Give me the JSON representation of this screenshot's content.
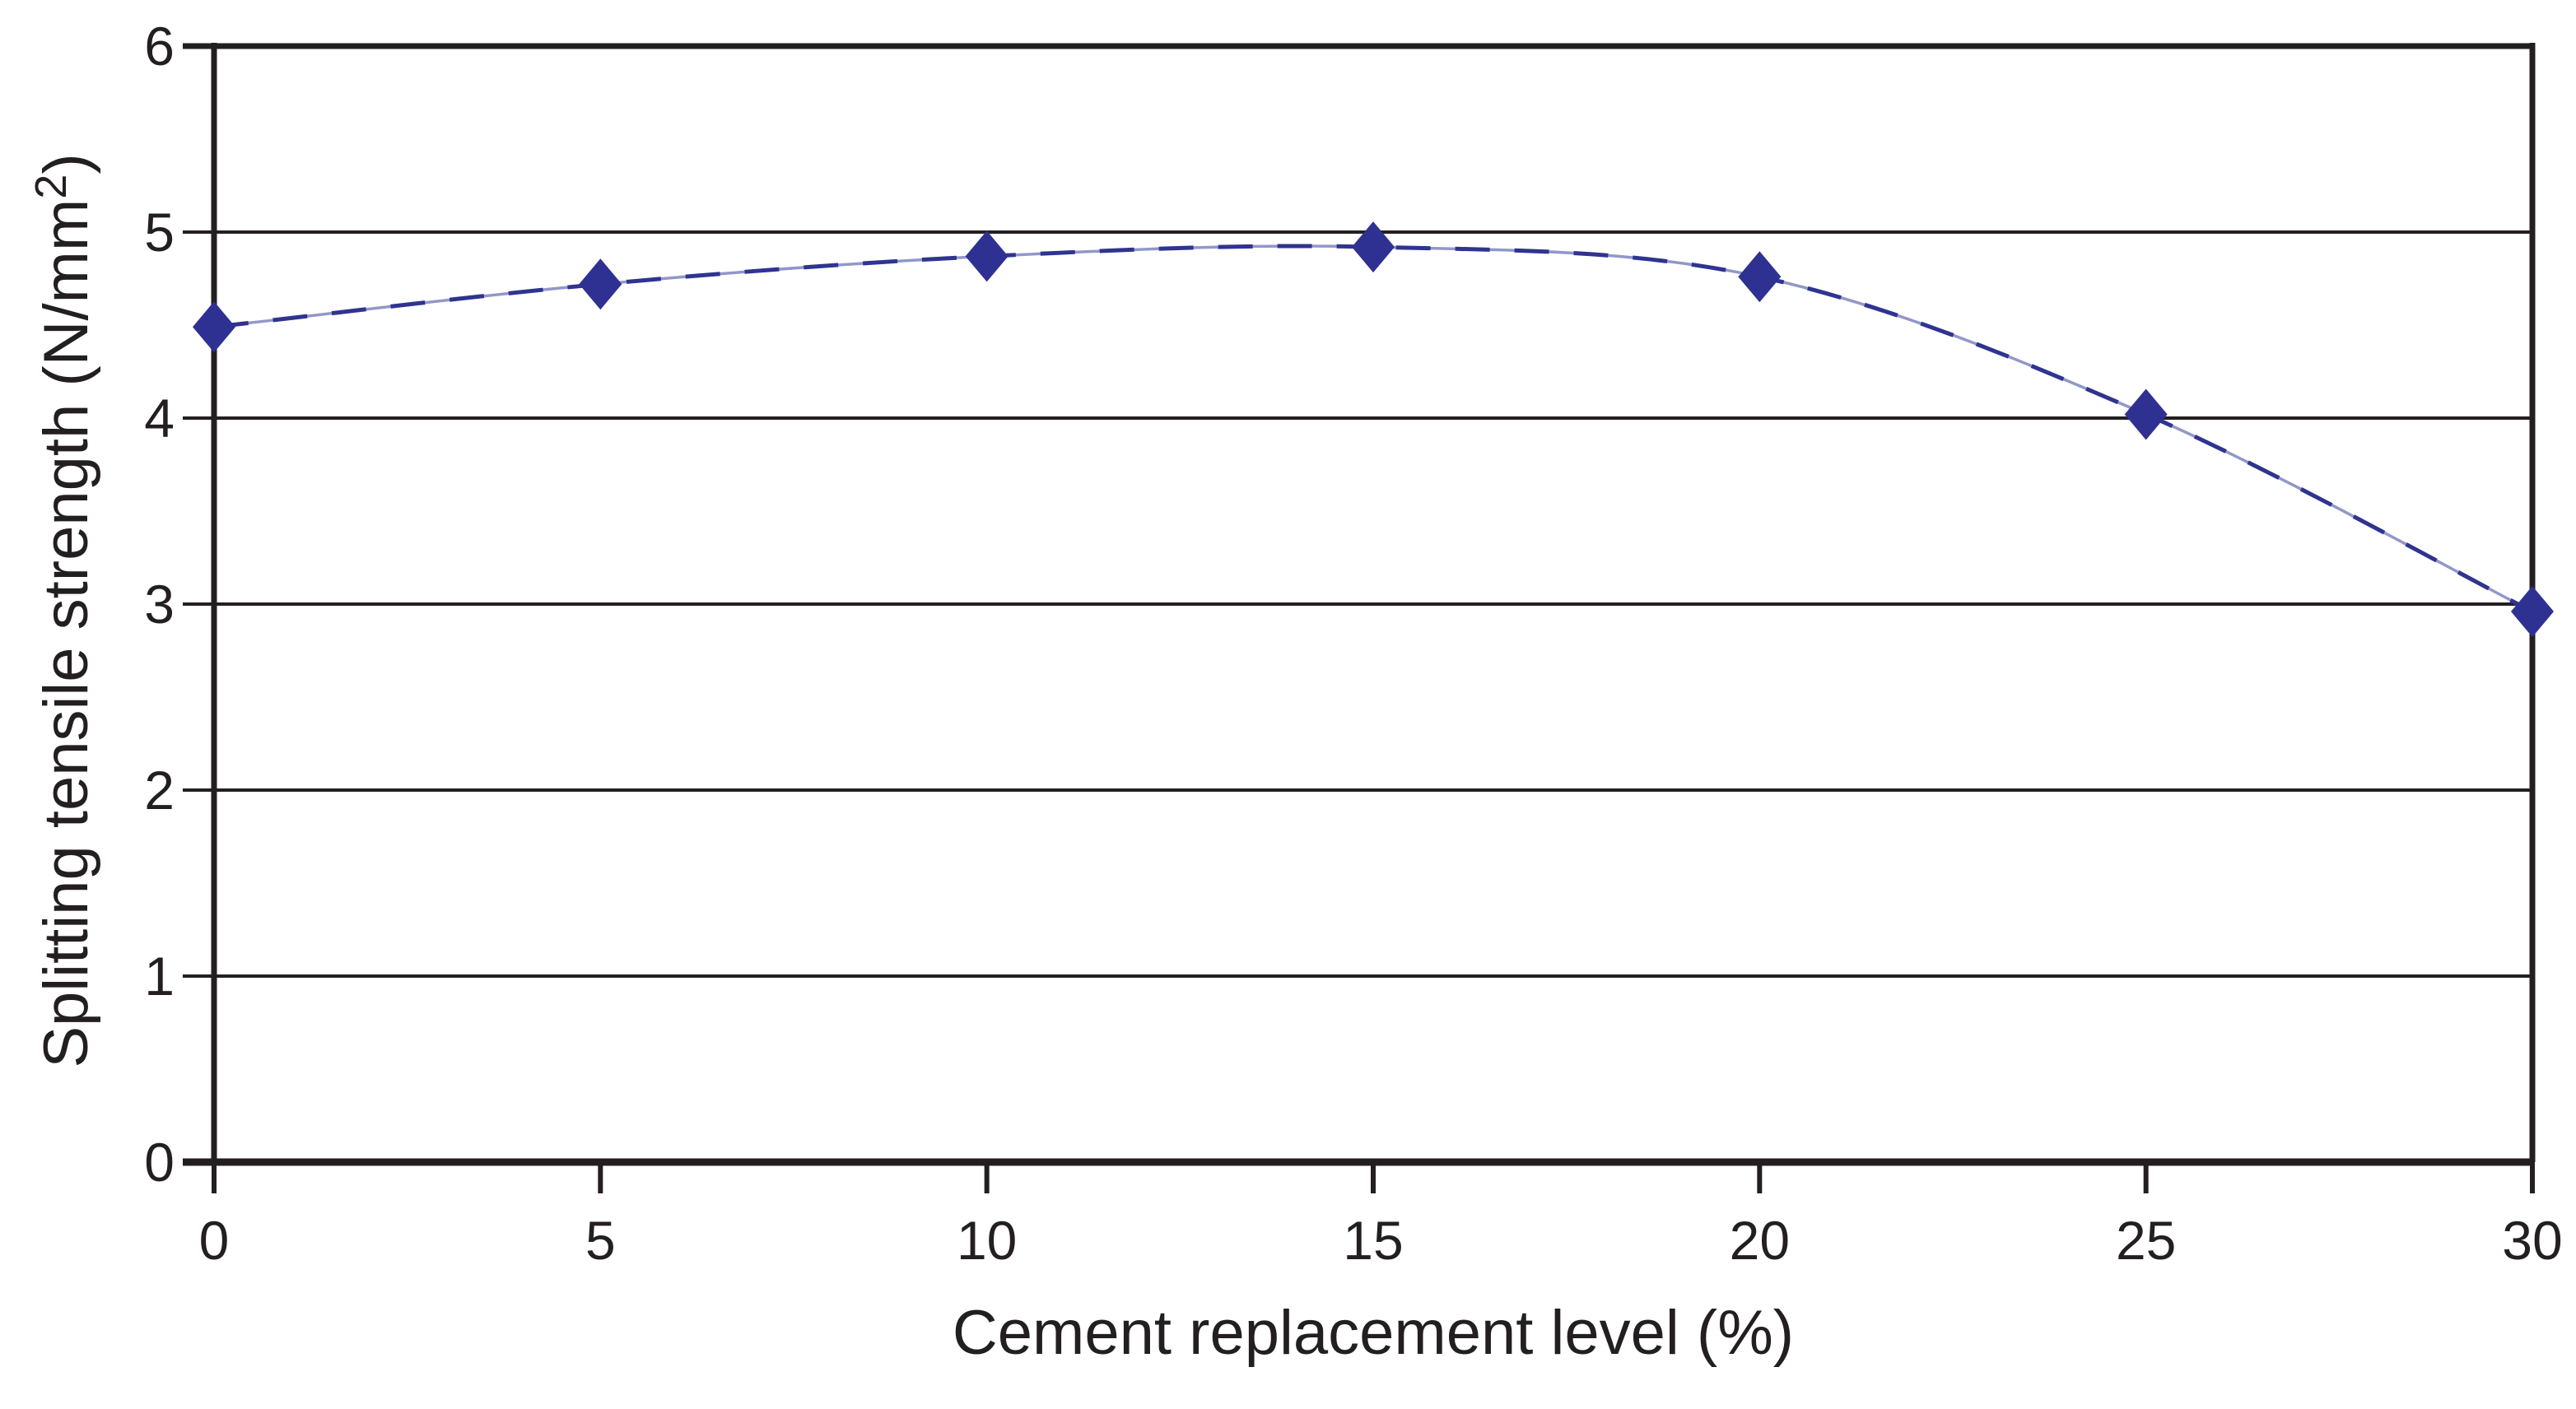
{
  "chart_data": {
    "type": "line",
    "title": "",
    "xlabel": "Cement replacement level (%)",
    "ylabel": "Splitting tensile strength (N/mm²)",
    "ylabel_parts": {
      "prefix": "Splitting tensile strength (N/mm",
      "sup": "2",
      "suffix": ")"
    },
    "x": [
      0,
      5,
      10,
      15,
      20,
      25,
      30
    ],
    "values": [
      4.49,
      4.72,
      4.87,
      4.92,
      4.76,
      4.02,
      2.96
    ],
    "xticks": [
      0,
      5,
      10,
      15,
      20,
      25,
      30
    ],
    "yticks": [
      0,
      1,
      2,
      3,
      4,
      5,
      6
    ],
    "xlim": [
      0,
      30
    ],
    "ylim": [
      0,
      6
    ],
    "grid": "horizontal",
    "legend": "none",
    "marker": "diamond",
    "line_style": "dashed",
    "colors": {
      "line": "#2F3490",
      "line_underlay": "#9297C8",
      "marker": "#2E3192",
      "axis": "#231F20",
      "text": "#231F20",
      "background": "#FFFFFF"
    }
  }
}
